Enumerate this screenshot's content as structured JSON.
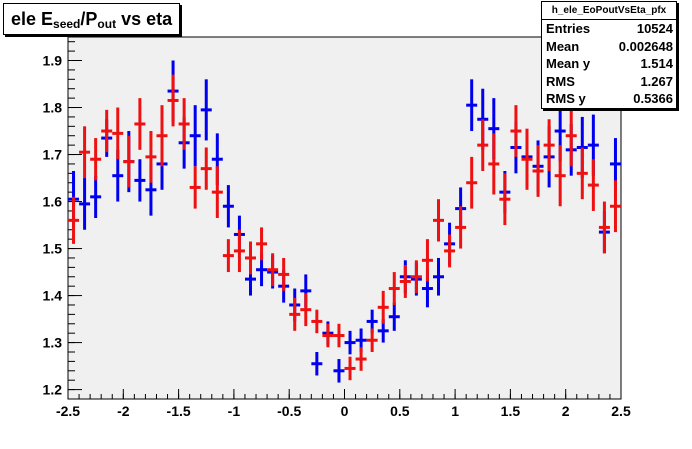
{
  "title": {
    "prefix": "ele E",
    "sub1": "seed",
    "mid": "/P",
    "sub2": "out",
    "suffix": " vs eta"
  },
  "stats": {
    "name": "h_ele_EoPoutVsEta_pfx",
    "rows": [
      {
        "key": "Entries",
        "value": "10524"
      },
      {
        "key": "Mean",
        "value": "0.002648"
      },
      {
        "key": "Mean y",
        "value": "1.514"
      },
      {
        "key": "RMS",
        "value": "1.267"
      },
      {
        "key": "RMS y",
        "value": "0.5366"
      }
    ]
  },
  "colors": {
    "frame_bg": "#f0f0f0",
    "axis": "#000000",
    "series_blue": "#0000ee",
    "series_red": "#ee1111"
  },
  "chart_data": {
    "type": "scatter",
    "title": "ele E_seed/P_out vs eta",
    "xlabel": "",
    "ylabel": "",
    "xlim": [
      -2.5,
      2.5
    ],
    "ylim": [
      1.18,
      1.95
    ],
    "xticks": [
      -2.5,
      -2,
      -1.5,
      -1,
      -0.5,
      0,
      0.5,
      1,
      1.5,
      2,
      2.5
    ],
    "xtick_labels": [
      "-2.5",
      "-2",
      "-1.5",
      "-1",
      "-0.5",
      "0",
      "0.5",
      "1",
      "1.5",
      "2",
      "2.5"
    ],
    "yticks": [
      1.2,
      1.3,
      1.4,
      1.5,
      1.6,
      1.7,
      1.8,
      1.9
    ],
    "ytick_labels": [
      "1.2",
      "1.3",
      "1.4",
      "1.5",
      "1.6",
      "1.7",
      "1.8",
      "1.9"
    ],
    "grid": false,
    "legend": "none",
    "series": [
      {
        "color": "blue",
        "x": [
          -2.45,
          -2.35,
          -2.25,
          -2.15,
          -2.05,
          -1.95,
          -1.85,
          -1.75,
          -1.65,
          -1.55,
          -1.45,
          -1.35,
          -1.25,
          -1.15,
          -1.05,
          -0.95,
          -0.85,
          -0.75,
          -0.65,
          -0.55,
          -0.45,
          -0.35,
          -0.25,
          -0.15,
          -0.05,
          0.05,
          0.15,
          0.25,
          0.35,
          0.45,
          0.55,
          0.65,
          0.75,
          0.85,
          0.95,
          1.05,
          1.15,
          1.25,
          1.35,
          1.45,
          1.55,
          1.65,
          1.75,
          1.85,
          1.95,
          2.05,
          2.15,
          2.25,
          2.35,
          2.45
        ],
        "y": [
          1.605,
          1.595,
          1.61,
          1.735,
          1.655,
          1.685,
          1.645,
          1.625,
          1.68,
          1.835,
          1.725,
          1.74,
          1.795,
          1.69,
          1.59,
          1.53,
          1.435,
          1.455,
          1.45,
          1.42,
          1.38,
          1.41,
          1.255,
          1.32,
          1.24,
          1.3,
          1.305,
          1.345,
          1.325,
          1.355,
          1.44,
          1.435,
          1.415,
          1.44,
          1.51,
          1.585,
          1.805,
          1.775,
          1.755,
          1.62,
          1.715,
          1.695,
          1.675,
          1.695,
          1.75,
          1.71,
          1.715,
          1.72,
          1.535,
          1.68
        ],
        "err": [
          0.06,
          0.055,
          0.045,
          0.04,
          0.055,
          0.065,
          0.045,
          0.055,
          0.055,
          0.065,
          0.055,
          0.065,
          0.065,
          0.055,
          0.045,
          0.04,
          0.035,
          0.035,
          0.035,
          0.035,
          0.035,
          0.035,
          0.025,
          0.025,
          0.025,
          0.025,
          0.025,
          0.025,
          0.025,
          0.03,
          0.035,
          0.035,
          0.04,
          0.04,
          0.045,
          0.045,
          0.055,
          0.065,
          0.065,
          0.045,
          0.055,
          0.055,
          0.055,
          0.065,
          0.065,
          0.055,
          0.065,
          0.065,
          0.045,
          0.055
        ]
      },
      {
        "color": "red",
        "x": [
          -2.45,
          -2.35,
          -2.25,
          -2.15,
          -2.05,
          -1.95,
          -1.85,
          -1.75,
          -1.65,
          -1.55,
          -1.45,
          -1.35,
          -1.25,
          -1.15,
          -1.05,
          -0.95,
          -0.85,
          -0.75,
          -0.65,
          -0.55,
          -0.45,
          -0.35,
          -0.25,
          -0.15,
          -0.05,
          0.05,
          0.15,
          0.25,
          0.35,
          0.45,
          0.55,
          0.65,
          0.75,
          0.85,
          0.95,
          1.05,
          1.15,
          1.25,
          1.35,
          1.45,
          1.55,
          1.65,
          1.75,
          1.85,
          1.95,
          2.05,
          2.15,
          2.25,
          2.35,
          2.45
        ],
        "y": [
          1.56,
          1.705,
          1.69,
          1.75,
          1.745,
          1.685,
          1.765,
          1.695,
          1.74,
          1.815,
          1.765,
          1.63,
          1.67,
          1.62,
          1.485,
          1.495,
          1.48,
          1.51,
          1.455,
          1.445,
          1.36,
          1.37,
          1.345,
          1.315,
          1.315,
          1.245,
          1.265,
          1.305,
          1.375,
          1.415,
          1.43,
          1.44,
          1.475,
          1.56,
          1.495,
          1.545,
          1.64,
          1.72,
          1.68,
          1.605,
          1.75,
          1.69,
          1.665,
          1.72,
          1.655,
          1.74,
          1.66,
          1.635,
          1.545,
          1.59
        ],
        "err": [
          0.05,
          0.055,
          0.045,
          0.045,
          0.055,
          0.055,
          0.055,
          0.055,
          0.065,
          0.055,
          0.055,
          0.045,
          0.045,
          0.055,
          0.035,
          0.045,
          0.035,
          0.035,
          0.035,
          0.035,
          0.035,
          0.035,
          0.025,
          0.025,
          0.025,
          0.025,
          0.025,
          0.025,
          0.035,
          0.035,
          0.035,
          0.035,
          0.045,
          0.045,
          0.035,
          0.045,
          0.055,
          0.055,
          0.065,
          0.055,
          0.055,
          0.065,
          0.055,
          0.055,
          0.065,
          0.065,
          0.055,
          0.055,
          0.055,
          0.055
        ]
      }
    ]
  }
}
